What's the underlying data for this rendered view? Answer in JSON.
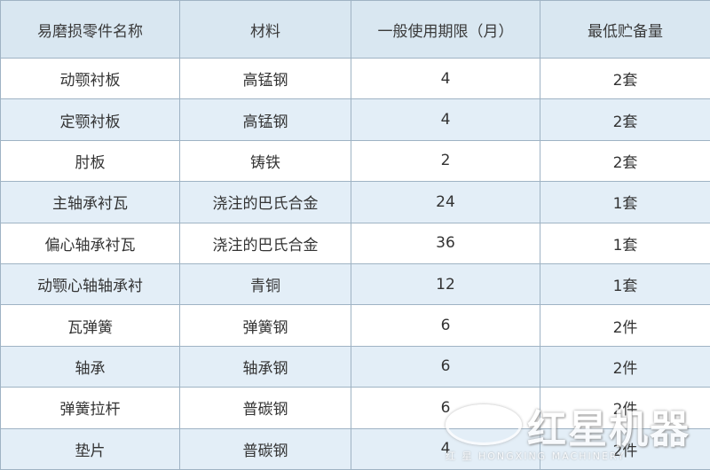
{
  "table": {
    "header": [
      "易磨损零件名称",
      "材料",
      "一般使用期限（月）",
      "最低贮备量"
    ],
    "rows": [
      [
        "动颚衬板",
        "高锰钢",
        "4",
        "2套"
      ],
      [
        "定颚衬板",
        "高锰钢",
        "4",
        "2套"
      ],
      [
        "肘板",
        "铸铁",
        "2",
        "2套"
      ],
      [
        "主轴承衬瓦",
        "浇注的巴氏合金",
        "24",
        "1套"
      ],
      [
        "偏心轴承衬瓦",
        "浇注的巴氏合金",
        "36",
        "1套"
      ],
      [
        "动颚心轴轴承衬",
        "青铜",
        "12",
        "1套"
      ],
      [
        "瓦弹簧",
        "弹簧钢",
        "6",
        "2件"
      ],
      [
        "轴承",
        "轴承钢",
        "6",
        "2件"
      ],
      [
        "弹簧拉杆",
        "普碳钢",
        "6",
        "2件"
      ],
      [
        "垫片",
        "普碳钢",
        "4",
        "2件"
      ]
    ]
  },
  "watermark": {
    "brand": "红星机器",
    "sub": "红 星 HONGXING MACHINERY"
  }
}
